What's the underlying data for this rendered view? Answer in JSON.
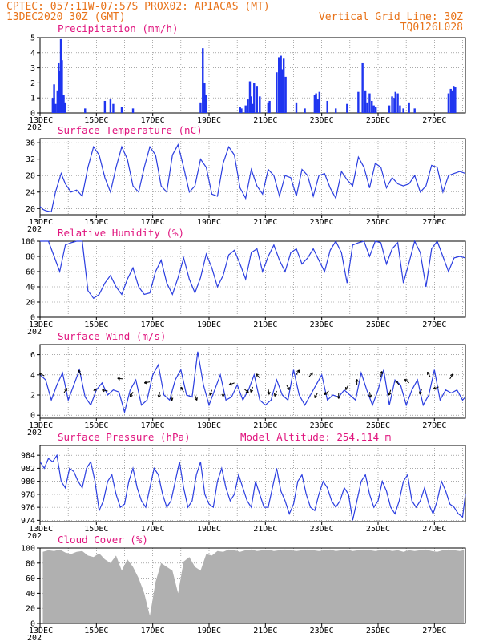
{
  "header": {
    "line1": "CPTEC:  057:11W-07:57S  PROX02: APIACAS (MT)",
    "line2": "13DEC2020 30Z (GMT)",
    "grid_note": "Vertical Grid Line: 30Z",
    "code": "TQ0126L028"
  },
  "colors": {
    "line": "#2b3ee0",
    "bar": "#1f35f0",
    "cloud": "#b0b0b0",
    "title": "#e0157e",
    "header": "#e8731a",
    "grid": "#777777"
  },
  "x_axis": {
    "start_day": 13,
    "end_day": 28.1,
    "labels": [
      {
        "day": 13,
        "text": "13DEC"
      },
      {
        "day": 15,
        "text": "15DEC"
      },
      {
        "day": 17,
        "text": "17DEC"
      },
      {
        "day": 19,
        "text": "19DEC"
      },
      {
        "day": 21,
        "text": "21DEC"
      },
      {
        "day": 23,
        "text": "23DEC"
      },
      {
        "day": 25,
        "text": "25DEC"
      },
      {
        "day": 27,
        "text": "27DEC"
      }
    ],
    "year_stub": "202"
  },
  "chart_data": [
    {
      "id": "precip",
      "type": "bar",
      "title": "Precipitation  (mm/h)",
      "ylim": [
        0,
        5
      ],
      "yticks": [
        "0",
        "1",
        "2",
        "3",
        "4",
        "5"
      ],
      "x": [
        13.45,
        13.5,
        13.55,
        13.62,
        13.66,
        13.7,
        13.74,
        13.78,
        13.84,
        13.9,
        14.6,
        15.3,
        15.5,
        15.6,
        15.9,
        16.3,
        18.7,
        18.78,
        18.84,
        18.9,
        20.1,
        20.15,
        20.3,
        20.38,
        20.45,
        20.5,
        20.55,
        20.6,
        20.7,
        20.8,
        21.1,
        21.15,
        21.4,
        21.48,
        21.55,
        21.6,
        21.65,
        21.72,
        22.1,
        22.4,
        22.75,
        22.8,
        22.86,
        22.92,
        23.2,
        23.5,
        23.9,
        24.3,
        24.45,
        24.55,
        24.62,
        24.7,
        24.78,
        24.85,
        24.92,
        25.4,
        25.5,
        25.58,
        25.62,
        25.7,
        25.78,
        25.9,
        26.1,
        26.3,
        27.5,
        27.58,
        27.62,
        27.68,
        27.74
      ],
      "values": [
        1,
        1.9,
        0.6,
        1.5,
        3.3,
        2.8,
        4.9,
        3.5,
        1.2,
        0.7,
        0.3,
        0.8,
        0.9,
        0.6,
        0.4,
        0.3,
        0.7,
        4.3,
        2,
        1.2,
        0.4,
        0.3,
        0.5,
        0.9,
        2.1,
        1.1,
        0.6,
        2,
        1.8,
        1.1,
        0.7,
        0.8,
        2.7,
        3.7,
        3.8,
        2.9,
        3.6,
        2.4,
        0.7,
        0.3,
        1.2,
        1.3,
        0.9,
        1.4,
        0.8,
        0.3,
        0.6,
        1.4,
        3.3,
        1.5,
        0.7,
        1.3,
        0.8,
        0.5,
        0.4,
        0.5,
        1.1,
        1,
        1.4,
        1.3,
        0.5,
        0.3,
        0.7,
        0.3,
        1.3,
        1.6,
        1.5,
        1.8,
        1.7
      ]
    },
    {
      "id": "temp",
      "type": "line",
      "title": "Surface Temperature (nC)",
      "ylim": [
        18.5,
        37
      ],
      "yticks": [
        "20",
        "24",
        "28",
        "32",
        "36"
      ],
      "ytick_values": [
        20,
        24,
        28,
        32,
        36
      ],
      "x": [
        13,
        13.1,
        13.2,
        13.4,
        13.55,
        13.75,
        13.9,
        14.1,
        14.3,
        14.5,
        14.7,
        14.9,
        15.1,
        15.3,
        15.5,
        15.7,
        15.9,
        16.1,
        16.3,
        16.5,
        16.7,
        16.9,
        17.1,
        17.3,
        17.5,
        17.7,
        17.9,
        18.1,
        18.3,
        18.5,
        18.7,
        18.9,
        19.1,
        19.3,
        19.5,
        19.7,
        19.9,
        20.1,
        20.3,
        20.5,
        20.7,
        20.9,
        21.1,
        21.3,
        21.5,
        21.7,
        21.9,
        22.1,
        22.3,
        22.5,
        22.7,
        22.9,
        23.1,
        23.3,
        23.5,
        23.7,
        23.9,
        24.1,
        24.3,
        24.5,
        24.7,
        24.9,
        25.1,
        25.3,
        25.5,
        25.7,
        25.9,
        26.1,
        26.3,
        26.5,
        26.7,
        26.9,
        27.1,
        27.3,
        27.5,
        27.7,
        27.9,
        28.1
      ],
      "values": [
        20.5,
        19.8,
        19.5,
        19.2,
        24,
        28.5,
        26,
        24,
        24.5,
        23,
        30,
        35,
        33,
        27.5,
        24,
        30,
        35,
        32,
        25.5,
        24,
        30,
        35,
        33,
        25.5,
        24,
        33,
        35.5,
        30,
        24,
        25.5,
        32,
        30,
        23.5,
        23,
        31,
        35,
        33,
        25,
        22.5,
        29.5,
        25.5,
        23.5,
        29.5,
        28,
        23,
        28,
        27.5,
        23,
        29.5,
        28,
        23,
        28,
        28.5,
        25,
        22.5,
        29,
        27,
        25.5,
        32.5,
        30,
        25,
        31,
        30,
        25,
        27.5,
        26,
        25.5,
        26,
        28,
        24,
        25.5,
        30.5,
        30,
        24,
        28,
        28.5,
        29,
        28.5
      ]
    },
    {
      "id": "rh",
      "type": "line",
      "title": "Relative Humidity (%)",
      "ylim": [
        0,
        100
      ],
      "yticks": [
        "0",
        "20",
        "40",
        "60",
        "80",
        "100"
      ],
      "ytick_values": [
        0,
        20,
        40,
        60,
        80,
        100
      ],
      "x": [
        13,
        13.1,
        13.3,
        13.5,
        13.7,
        13.9,
        14.1,
        14.3,
        14.5,
        14.7,
        14.9,
        15.1,
        15.3,
        15.5,
        15.7,
        15.9,
        16.1,
        16.3,
        16.5,
        16.7,
        16.9,
        17.1,
        17.3,
        17.5,
        17.7,
        17.9,
        18.1,
        18.3,
        18.5,
        18.7,
        18.9,
        19.1,
        19.3,
        19.5,
        19.7,
        19.9,
        20.1,
        20.3,
        20.5,
        20.7,
        20.9,
        21.1,
        21.3,
        21.5,
        21.7,
        21.9,
        22.1,
        22.3,
        22.5,
        22.7,
        22.9,
        23.1,
        23.3,
        23.5,
        23.7,
        23.9,
        24.1,
        24.3,
        24.5,
        24.7,
        24.9,
        25.1,
        25.3,
        25.5,
        25.7,
        25.9,
        26.1,
        26.3,
        26.5,
        26.7,
        26.9,
        27.1,
        27.3,
        27.5,
        27.7,
        27.9,
        28.1
      ],
      "values": [
        100,
        100,
        100,
        80,
        60,
        95,
        98,
        100,
        100,
        35,
        25,
        30,
        45,
        55,
        40,
        30,
        50,
        65,
        40,
        30,
        32,
        60,
        75,
        45,
        30,
        52,
        78,
        50,
        32,
        52,
        83,
        65,
        40,
        55,
        82,
        88,
        70,
        50,
        85,
        90,
        60,
        80,
        95,
        75,
        60,
        85,
        90,
        70,
        78,
        90,
        75,
        60,
        88,
        100,
        85,
        45,
        95,
        98,
        100,
        80,
        100,
        98,
        70,
        90,
        98,
        45,
        72,
        100,
        85,
        40,
        90,
        100,
        80,
        60,
        78,
        80,
        78
      ]
    },
    {
      "id": "wind",
      "type": "line",
      "title": "Surface Wind (m/s)",
      "ylim": [
        -0.3,
        7
      ],
      "yticks": [
        "0",
        "2",
        "4",
        "6"
      ],
      "ytick_values": [
        0,
        2,
        4,
        6
      ],
      "x": [
        13,
        13.2,
        13.4,
        13.6,
        13.8,
        14,
        14.2,
        14.4,
        14.6,
        14.8,
        15,
        15.2,
        15.4,
        15.6,
        15.8,
        16,
        16.2,
        16.4,
        16.6,
        16.8,
        17,
        17.2,
        17.4,
        17.6,
        17.8,
        18,
        18.2,
        18.4,
        18.6,
        18.8,
        19,
        19.2,
        19.4,
        19.6,
        19.8,
        20,
        20.2,
        20.4,
        20.6,
        20.8,
        21,
        21.2,
        21.4,
        21.6,
        21.8,
        22,
        22.2,
        22.4,
        22.6,
        22.8,
        23,
        23.2,
        23.4,
        23.6,
        23.8,
        24,
        24.2,
        24.4,
        24.6,
        24.8,
        25,
        25.2,
        25.4,
        25.6,
        25.8,
        26,
        26.2,
        26.4,
        26.6,
        26.8,
        27,
        27.2,
        27.4,
        27.6,
        27.8,
        28,
        28.1
      ],
      "values": [
        4,
        3.5,
        1.5,
        3,
        4.2,
        1.5,
        3,
        4.5,
        1.8,
        1,
        2.5,
        3.2,
        2,
        2.5,
        2.3,
        0.3,
        2.5,
        3.5,
        1,
        1.5,
        4,
        5,
        2,
        1.5,
        3.5,
        4.5,
        2,
        1.8,
        6.3,
        3,
        1,
        2.5,
        4,
        1.5,
        1.8,
        3,
        1.5,
        2.5,
        4,
        1.5,
        1,
        1.5,
        3.5,
        2,
        1.5,
        4.5,
        2,
        1,
        2,
        3,
        4,
        1.5,
        2,
        1.8,
        2.5,
        2,
        1.5,
        4.2,
        2.5,
        1,
        2.5,
        4.5,
        1,
        3.5,
        3,
        1,
        2.5,
        3.5,
        1,
        2,
        4.5,
        1.5,
        2.5,
        2.2,
        2.5,
        1.5,
        1.8
      ],
      "arrows": [
        {
          "x": 13.15,
          "y": 3.9,
          "deg": 150
        },
        {
          "x": 13.85,
          "y": 2.2,
          "deg": 60
        },
        {
          "x": 14.45,
          "y": 4.0,
          "deg": 120
        },
        {
          "x": 14.95,
          "y": 2.1,
          "deg": 90
        },
        {
          "x": 15.4,
          "y": 2.4,
          "deg": 170
        },
        {
          "x": 15.95,
          "y": 3.6,
          "deg": 175
        },
        {
          "x": 16.3,
          "y": 2.3,
          "deg": 240
        },
        {
          "x": 16.9,
          "y": 3.3,
          "deg": 190
        },
        {
          "x": 17.25,
          "y": 2.3,
          "deg": 260
        },
        {
          "x": 17.65,
          "y": 2.0,
          "deg": 280
        },
        {
          "x": 18.1,
          "y": 2.3,
          "deg": 120
        },
        {
          "x": 18.5,
          "y": 2.0,
          "deg": 290
        },
        {
          "x": 19.1,
          "y": 2.5,
          "deg": 250
        },
        {
          "x": 19.5,
          "y": 2.4,
          "deg": 270
        },
        {
          "x": 19.9,
          "y": 3.2,
          "deg": 200
        },
        {
          "x": 20.25,
          "y": 2.6,
          "deg": 320
        },
        {
          "x": 20.55,
          "y": 2.8,
          "deg": 250
        },
        {
          "x": 20.8,
          "y": 3.7,
          "deg": 135
        },
        {
          "x": 21.1,
          "y": 2.6,
          "deg": 280
        },
        {
          "x": 21.4,
          "y": 2.4,
          "deg": 250
        },
        {
          "x": 21.75,
          "y": 3.0,
          "deg": 300
        },
        {
          "x": 22.1,
          "y": 4.0,
          "deg": 60
        },
        {
          "x": 22.55,
          "y": 3.8,
          "deg": 50
        },
        {
          "x": 22.85,
          "y": 2.2,
          "deg": 240
        },
        {
          "x": 23.25,
          "y": 2.4,
          "deg": 220
        },
        {
          "x": 23.6,
          "y": 2.2,
          "deg": 270
        },
        {
          "x": 23.95,
          "y": 3.0,
          "deg": 240
        },
        {
          "x": 24.25,
          "y": 3.0,
          "deg": 90
        },
        {
          "x": 24.7,
          "y": 2.3,
          "deg": 280
        },
        {
          "x": 25.1,
          "y": 3.8,
          "deg": 80
        },
        {
          "x": 25.45,
          "y": 2.5,
          "deg": 250
        },
        {
          "x": 25.75,
          "y": 3.0,
          "deg": 130
        },
        {
          "x": 26.1,
          "y": 3.2,
          "deg": 140
        },
        {
          "x": 26.55,
          "y": 2.6,
          "deg": 250
        },
        {
          "x": 26.85,
          "y": 3.8,
          "deg": 120
        },
        {
          "x": 27.15,
          "y": 2.8,
          "deg": 200
        },
        {
          "x": 27.55,
          "y": 3.6,
          "deg": 60
        }
      ]
    },
    {
      "id": "pressure",
      "type": "line",
      "title": "Surface Pressure (hPa)",
      "note": "Model Altitude: 254.114  m",
      "ylim": [
        973.8,
        985.5
      ],
      "yticks": [
        "974",
        "976",
        "978",
        "980",
        "982",
        "984"
      ],
      "ytick_values": [
        974,
        976,
        978,
        980,
        982,
        984
      ],
      "x": [
        13,
        13.15,
        13.3,
        13.45,
        13.6,
        13.75,
        13.9,
        14.05,
        14.2,
        14.35,
        14.5,
        14.65,
        14.8,
        14.95,
        15.1,
        15.25,
        15.4,
        15.55,
        15.7,
        15.85,
        16,
        16.15,
        16.3,
        16.45,
        16.6,
        16.75,
        16.9,
        17.05,
        17.2,
        17.35,
        17.5,
        17.65,
        17.8,
        17.95,
        18.1,
        18.25,
        18.4,
        18.55,
        18.7,
        18.85,
        19,
        19.15,
        19.3,
        19.45,
        19.6,
        19.75,
        19.9,
        20.05,
        20.2,
        20.35,
        20.5,
        20.65,
        20.8,
        20.95,
        21.1,
        21.25,
        21.4,
        21.55,
        21.7,
        21.85,
        22,
        22.15,
        22.3,
        22.45,
        22.6,
        22.75,
        22.9,
        23.05,
        23.2,
        23.35,
        23.5,
        23.65,
        23.8,
        23.95,
        24.1,
        24.25,
        24.4,
        24.55,
        24.7,
        24.85,
        25,
        25.15,
        25.3,
        25.45,
        25.6,
        25.75,
        25.9,
        26.05,
        26.2,
        26.35,
        26.5,
        26.65,
        26.8,
        26.95,
        27.1,
        27.25,
        27.4,
        27.55,
        27.7,
        27.85,
        28,
        28.1
      ],
      "values": [
        983,
        982,
        983.5,
        983,
        984,
        980,
        979,
        982,
        981.5,
        980,
        979,
        982,
        983,
        980,
        975.5,
        977,
        980,
        981,
        978,
        976,
        976.5,
        980,
        982,
        979,
        977,
        976,
        979,
        982,
        981,
        978,
        976,
        977,
        980,
        983,
        979,
        976,
        977,
        981,
        983,
        978,
        976.5,
        976,
        980,
        982,
        979,
        977,
        978,
        981,
        979,
        977,
        976,
        980,
        978,
        976,
        976,
        979,
        982,
        978.5,
        977,
        975,
        976.5,
        980,
        981,
        978,
        976,
        975.5,
        978,
        980,
        979,
        977,
        976,
        977,
        979,
        978,
        974,
        977,
        980,
        981,
        978,
        976,
        977,
        980,
        978.5,
        976,
        975,
        977,
        980,
        981,
        977,
        976,
        977,
        979,
        976.5,
        975,
        977,
        980,
        978.5,
        976.5,
        976,
        975,
        974.5,
        978
      ]
    },
    {
      "id": "cloud",
      "type": "area",
      "title": "Cloud Cover (%)",
      "ylim": [
        0,
        100
      ],
      "yticks": [
        "0",
        "20",
        "40",
        "60",
        "80",
        "100"
      ],
      "ytick_values": [
        0,
        20,
        40,
        60,
        80,
        100
      ],
      "x": [
        13.1,
        13.3,
        13.5,
        13.7,
        13.9,
        14.1,
        14.3,
        14.5,
        14.7,
        14.9,
        15.1,
        15.3,
        15.5,
        15.7,
        15.9,
        16.1,
        16.3,
        16.5,
        16.7,
        16.9,
        17.1,
        17.3,
        17.5,
        17.7,
        17.9,
        18.1,
        18.3,
        18.5,
        18.7,
        18.9,
        19.1,
        19.3,
        19.5,
        19.7,
        19.9,
        20.1,
        20.3,
        20.5,
        20.7,
        20.9,
        21.1,
        21.3,
        21.5,
        21.7,
        21.9,
        22.1,
        22.3,
        22.5,
        22.7,
        22.9,
        23.1,
        23.3,
        23.5,
        23.7,
        23.9,
        24.1,
        24.3,
        24.5,
        24.7,
        24.9,
        25.1,
        25.3,
        25.5,
        25.7,
        25.9,
        26.1,
        26.3,
        26.5,
        26.7,
        26.9,
        27.1,
        27.3,
        27.5,
        27.7,
        27.9,
        28.05
      ],
      "values": [
        95,
        97,
        96,
        98,
        94,
        92,
        95,
        96,
        90,
        88,
        93,
        85,
        80,
        90,
        70,
        85,
        75,
        60,
        40,
        10,
        55,
        80,
        75,
        70,
        40,
        82,
        88,
        75,
        70,
        92,
        90,
        96,
        95,
        98,
        97,
        95,
        97,
        98,
        96,
        97,
        98,
        96,
        97,
        98,
        97,
        96,
        97,
        98,
        97,
        96,
        97,
        98,
        96,
        97,
        98,
        96,
        97,
        98,
        97,
        96,
        97,
        98,
        96,
        97,
        95,
        97,
        96,
        97,
        98,
        96,
        95,
        97,
        98,
        97,
        96,
        97
      ]
    }
  ]
}
